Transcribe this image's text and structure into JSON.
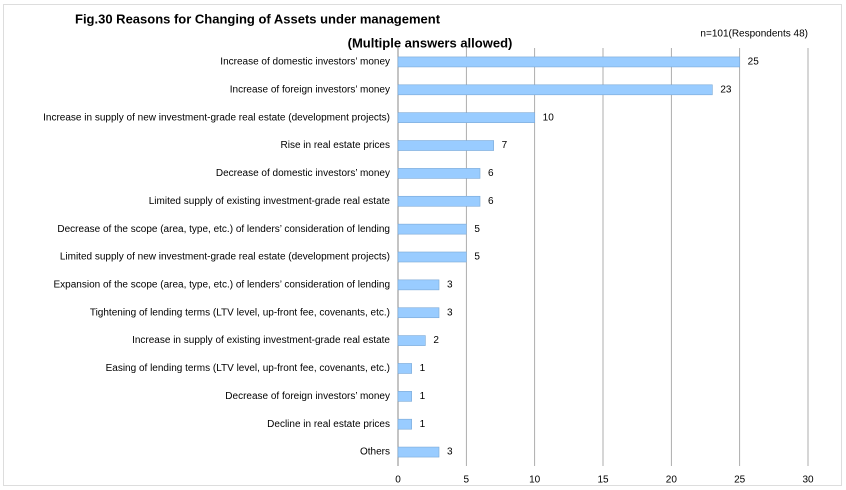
{
  "chart_data": {
    "type": "barh",
    "title": "Fig.30 Reasons for Changing of Assets under management",
    "subtitle": "(Multiple answers allowed)",
    "annotation": "n=101(Respondents 48)",
    "categories": [
      "Increase of domestic investors’ money",
      "Increase of foreign investors’ money",
      "Increase in supply of new investment-grade real estate (development projects)",
      "Rise in real estate prices",
      "Decrease of domestic investors’ money",
      "Limited supply of existing investment-grade real estate",
      "Decrease of the scope (area, type, etc.) of lenders’ consideration of lending",
      "Limited supply of new investment-grade real estate (development projects)",
      "Expansion of the scope (area, type, etc.) of lenders’ consideration of lending",
      "Tightening of lending terms (LTV level, up-front fee, covenants, etc.)",
      "Increase in supply of existing investment-grade real estate",
      "Easing of lending terms (LTV level, up-front fee, covenants, etc.)",
      "Decrease of foreign investors’ money",
      "Decline in real estate prices",
      "Others"
    ],
    "values": [
      25,
      23,
      10,
      7,
      6,
      6,
      5,
      5,
      3,
      3,
      2,
      1,
      1,
      1,
      3
    ],
    "color": "#99ccff",
    "xlim": [
      0,
      30
    ],
    "xticks": [
      0,
      5,
      10,
      15,
      20,
      25,
      30
    ],
    "grid": true
  }
}
